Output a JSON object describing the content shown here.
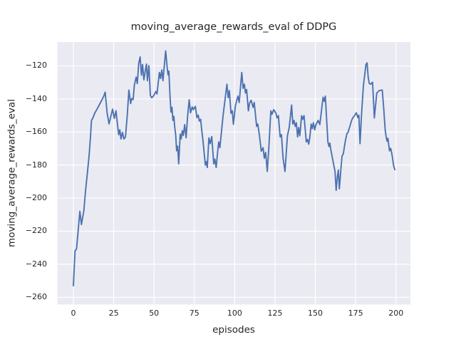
{
  "chart_data": {
    "type": "line",
    "title": "moving_average_rewards_eval of DDPG",
    "xlabel": "episodes",
    "ylabel": "moving_average_rewards_eval",
    "x_ticks": [
      0,
      25,
      50,
      75,
      100,
      125,
      150,
      175,
      200
    ],
    "y_ticks": [
      -120,
      -140,
      -160,
      -180,
      -200,
      -220,
      -240,
      -260
    ],
    "xlim": [
      -9.95,
      208.95
    ],
    "ylim": [
      -264.3,
      -105.6
    ],
    "grid": true,
    "legend": "none",
    "background": "#eaeaf2",
    "grid_color": "#ffffff",
    "line_color": "#4c72b0",
    "text_color": "#262626",
    "series": [
      {
        "name": "moving_average_rewards_eval",
        "points": [
          [
            0,
            -253
          ],
          [
            1,
            -232
          ],
          [
            2,
            -230.5
          ],
          [
            4,
            -208
          ],
          [
            5,
            -216
          ],
          [
            6.5,
            -207.5
          ],
          [
            7.6,
            -195
          ],
          [
            8.7,
            -184.5
          ],
          [
            9.7,
            -174.5
          ],
          [
            10.6,
            -163
          ],
          [
            11.2,
            -153
          ],
          [
            12.1,
            -151.5
          ],
          [
            13.2,
            -148.7
          ],
          [
            15,
            -145.5
          ],
          [
            16.9,
            -142
          ],
          [
            18.7,
            -138.6
          ],
          [
            19.7,
            -135.9
          ],
          [
            20.9,
            -148.4
          ],
          [
            22.1,
            -155.1
          ],
          [
            24.3,
            -146.2
          ],
          [
            25.4,
            -151.8
          ],
          [
            26.4,
            -147.2
          ],
          [
            27.3,
            -155.1
          ],
          [
            28.1,
            -161.6
          ],
          [
            28.8,
            -158.7
          ],
          [
            29.5,
            -164.2
          ],
          [
            30.4,
            -160.2
          ],
          [
            31.3,
            -164.2
          ],
          [
            32.3,
            -163
          ],
          [
            33.4,
            -150
          ],
          [
            34.4,
            -134.7
          ],
          [
            35.5,
            -142.8
          ],
          [
            36.1,
            -139.8
          ],
          [
            37,
            -140.4
          ],
          [
            37.8,
            -131.6
          ],
          [
            38.9,
            -126.8
          ],
          [
            39.6,
            -130.7
          ],
          [
            40.5,
            -118.5
          ],
          [
            41.4,
            -114.6
          ],
          [
            42.2,
            -125.7
          ],
          [
            42.9,
            -119.2
          ],
          [
            43.7,
            -128.5
          ],
          [
            44.6,
            -122.8
          ],
          [
            45.3,
            -118.9
          ],
          [
            45.9,
            -129
          ],
          [
            46.8,
            -119.9
          ],
          [
            47.7,
            -137.9
          ],
          [
            48.6,
            -139.3
          ],
          [
            49.6,
            -138.3
          ],
          [
            51.1,
            -135.5
          ],
          [
            51.8,
            -137
          ],
          [
            53.3,
            -124
          ],
          [
            54,
            -127.6
          ],
          [
            54.8,
            -122.5
          ],
          [
            55.5,
            -129
          ],
          [
            57.2,
            -111
          ],
          [
            58.2,
            -121.8
          ],
          [
            58.7,
            -125.4
          ],
          [
            59.2,
            -123.2
          ],
          [
            60,
            -140
          ],
          [
            60.5,
            -148
          ],
          [
            61.1,
            -145
          ],
          [
            61.7,
            -153
          ],
          [
            62.3,
            -150.5
          ],
          [
            62.8,
            -157
          ],
          [
            63.4,
            -161.3
          ],
          [
            64,
            -171.4
          ],
          [
            64.6,
            -168.5
          ],
          [
            65.3,
            -179.3
          ],
          [
            66.2,
            -161.3
          ],
          [
            66.8,
            -164.2
          ],
          [
            67.5,
            -159.2
          ],
          [
            68.1,
            -162.1
          ],
          [
            69,
            -155.6
          ],
          [
            69.9,
            -163.5
          ],
          [
            70.8,
            -150.5
          ],
          [
            71.8,
            -140.5
          ],
          [
            72.6,
            -148.4
          ],
          [
            73.7,
            -144.8
          ],
          [
            74.4,
            -146.5
          ],
          [
            75.6,
            -144.5
          ],
          [
            76.6,
            -151.3
          ],
          [
            77.4,
            -149.8
          ],
          [
            78.1,
            -153.4
          ],
          [
            78.9,
            -152.3
          ],
          [
            79.6,
            -159.2
          ],
          [
            80.3,
            -165
          ],
          [
            81.1,
            -172.8
          ],
          [
            81.8,
            -180
          ],
          [
            82.5,
            -177.9
          ],
          [
            83,
            -181.5
          ],
          [
            84,
            -163.5
          ],
          [
            84.8,
            -167.1
          ],
          [
            85.8,
            -162.8
          ],
          [
            87,
            -179.3
          ],
          [
            87.7,
            -176.4
          ],
          [
            88.5,
            -181.5
          ],
          [
            89.5,
            -171.4
          ],
          [
            90.1,
            -166
          ],
          [
            90.8,
            -169.5
          ],
          [
            92.8,
            -150
          ],
          [
            95.2,
            -131.1
          ],
          [
            96,
            -139.3
          ],
          [
            96.7,
            -135
          ],
          [
            97.7,
            -148.7
          ],
          [
            98.5,
            -147.2
          ],
          [
            99.2,
            -155.4
          ],
          [
            100.4,
            -144.4
          ],
          [
            101.3,
            -140.8
          ],
          [
            102,
            -138.3
          ],
          [
            102.8,
            -142.2
          ],
          [
            104.4,
            -124
          ],
          [
            105.2,
            -133.6
          ],
          [
            106,
            -131.1
          ],
          [
            106.7,
            -136.4
          ],
          [
            107.4,
            -134.3
          ],
          [
            108.5,
            -147.2
          ],
          [
            109.2,
            -142.7
          ],
          [
            110.2,
            -140.8
          ],
          [
            111.4,
            -145.1
          ],
          [
            112.1,
            -142.2
          ],
          [
            113.6,
            -156.6
          ],
          [
            114.3,
            -155.2
          ],
          [
            115.4,
            -162.3
          ],
          [
            116.5,
            -171.6
          ],
          [
            117.6,
            -169.5
          ],
          [
            118.4,
            -175.9
          ],
          [
            119.2,
            -172.3
          ],
          [
            120.2,
            -183.9
          ],
          [
            121.2,
            -168.8
          ],
          [
            122.4,
            -147.2
          ],
          [
            123.1,
            -149.3
          ],
          [
            124.2,
            -146.5
          ],
          [
            125.6,
            -148.7
          ],
          [
            126.3,
            -151.5
          ],
          [
            127.1,
            -150.1
          ],
          [
            128.2,
            -163
          ],
          [
            129,
            -161.6
          ],
          [
            130,
            -175.9
          ],
          [
            131.2,
            -183.9
          ],
          [
            132.7,
            -162.3
          ],
          [
            133.8,
            -157.3
          ],
          [
            134.6,
            -150.1
          ],
          [
            135.3,
            -143.7
          ],
          [
            136,
            -155.2
          ],
          [
            136.8,
            -153
          ],
          [
            137.5,
            -156.6
          ],
          [
            138.2,
            -154.4
          ],
          [
            139,
            -163
          ],
          [
            139.7,
            -157.3
          ],
          [
            140.4,
            -162.3
          ],
          [
            141.5,
            -150.1
          ],
          [
            142.2,
            -152.3
          ],
          [
            143,
            -150.1
          ],
          [
            144.4,
            -166
          ],
          [
            145.2,
            -164.5
          ],
          [
            145.9,
            -167.4
          ],
          [
            146.6,
            -163
          ],
          [
            147.4,
            -155.2
          ],
          [
            148.1,
            -158
          ],
          [
            148.8,
            -154.4
          ],
          [
            149.6,
            -158.7
          ],
          [
            150.3,
            -155.8
          ],
          [
            151.8,
            -153
          ],
          [
            152.8,
            -155.5
          ],
          [
            154.8,
            -139
          ],
          [
            155.5,
            -141.5
          ],
          [
            156.2,
            -138.3
          ],
          [
            157.8,
            -166
          ],
          [
            158.5,
            -168.8
          ],
          [
            159,
            -166.7
          ],
          [
            159.5,
            -170.2
          ],
          [
            161.5,
            -180.3
          ],
          [
            162.2,
            -183.9
          ],
          [
            162.9,
            -195.3
          ],
          [
            163.7,
            -186.7
          ],
          [
            164.3,
            -183
          ],
          [
            164.9,
            -194.4
          ],
          [
            165.9,
            -181.7
          ],
          [
            166.6,
            -174.6
          ],
          [
            167.4,
            -173.1
          ],
          [
            168.4,
            -166.6
          ],
          [
            169.6,
            -160.9
          ],
          [
            170.3,
            -160.2
          ],
          [
            171.4,
            -156.6
          ],
          [
            172.5,
            -153
          ],
          [
            173.3,
            -151.3
          ],
          [
            174.3,
            -150.1
          ],
          [
            175.4,
            -148.4
          ],
          [
            176.4,
            -151.3
          ],
          [
            177,
            -149.8
          ],
          [
            177.7,
            -167.1
          ],
          [
            178.6,
            -150.3
          ],
          [
            179.8,
            -132.1
          ],
          [
            181.4,
            -119.2
          ],
          [
            182.1,
            -118.2
          ],
          [
            182.8,
            -127.1
          ],
          [
            183.5,
            -130.7
          ],
          [
            184.3,
            -131.1
          ],
          [
            185.5,
            -129.9
          ],
          [
            186.6,
            -151.5
          ],
          [
            188.1,
            -136.4
          ],
          [
            189.6,
            -135
          ],
          [
            191.5,
            -134.6
          ],
          [
            192.5,
            -147.2
          ],
          [
            193.3,
            -158.7
          ],
          [
            193.9,
            -162.8
          ],
          [
            194.5,
            -165.6
          ],
          [
            195,
            -163.8
          ],
          [
            196,
            -171.4
          ],
          [
            196.7,
            -169.9
          ],
          [
            197.5,
            -173.5
          ],
          [
            198.6,
            -180.7
          ],
          [
            199.3,
            -182.8
          ]
        ]
      }
    ]
  }
}
